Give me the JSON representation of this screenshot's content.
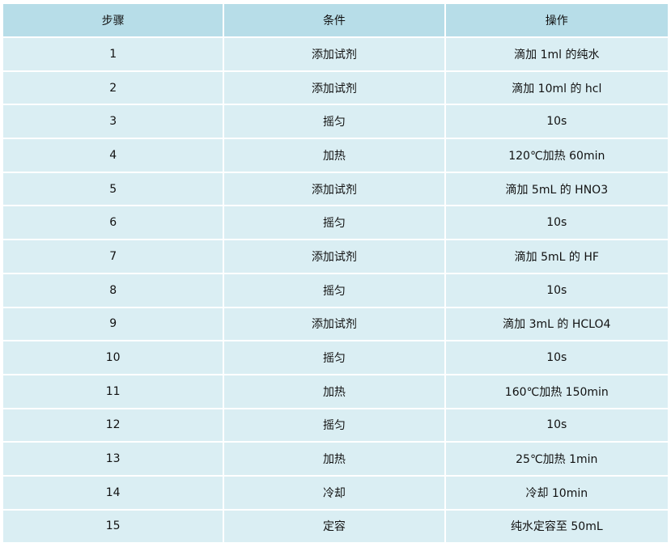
{
  "table": {
    "headers": [
      "步骤",
      "条件",
      "操作"
    ],
    "rows": [
      [
        "1",
        "添加试剂",
        "滴加 1ml 的纯水"
      ],
      [
        "2",
        "添加试剂",
        "滴加 10ml 的 hcl"
      ],
      [
        "3",
        "摇匀",
        "10s"
      ],
      [
        "4",
        "加热",
        "120℃加热 60min"
      ],
      [
        "5",
        "添加试剂",
        "滴加 5mL 的 HNO3"
      ],
      [
        "6",
        "摇匀",
        "10s"
      ],
      [
        "7",
        "添加试剂",
        "滴加 5mL 的 HF"
      ],
      [
        "8",
        "摇匀",
        "10s"
      ],
      [
        "9",
        "添加试剂",
        "滴加 3mL 的 HCLO4"
      ],
      [
        "10",
        "摇匀",
        "10s"
      ],
      [
        "11",
        "加热",
        "160℃加热 150min"
      ],
      [
        "12",
        "摇匀",
        "10s"
      ],
      [
        "13",
        "加热",
        "25℃加热 1min"
      ],
      [
        "14",
        "冷却",
        "冷却 10min"
      ],
      [
        "15",
        "定容",
        "纯水定容至 50mL"
      ]
    ]
  },
  "colors": {
    "header_bg": "#b7dde8",
    "row_bg": "#daeef3",
    "border": "#ffffff"
  }
}
